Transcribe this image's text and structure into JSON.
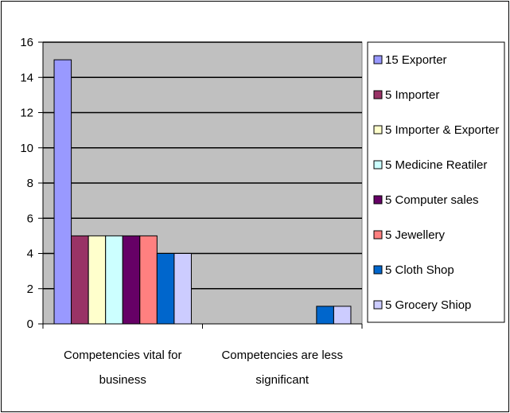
{
  "chart_data": {
    "type": "bar",
    "categories": [
      [
        "Competencies vital for",
        "business"
      ],
      [
        "Competencies are less",
        "significant"
      ]
    ],
    "series": [
      {
        "name": "15 Exporter",
        "color": "#9999ff",
        "values": [
          15,
          0
        ]
      },
      {
        "name": "5 Importer",
        "color": "#993366",
        "values": [
          5,
          0
        ]
      },
      {
        "name": "5 Importer & Exporter",
        "color": "#ffffcc",
        "values": [
          5,
          0
        ]
      },
      {
        "name": "5 Medicine Reatiler",
        "color": "#ccffff",
        "values": [
          5,
          0
        ]
      },
      {
        "name": "5 Computer sales",
        "color": "#660066",
        "values": [
          5,
          0
        ]
      },
      {
        "name": "5 Jewellery",
        "color": "#ff8080",
        "values": [
          5,
          0
        ]
      },
      {
        "name": "5 Cloth Shop",
        "color": "#0066cc",
        "values": [
          4,
          1
        ]
      },
      {
        "name": "5 Grocery Shiop",
        "color": "#ccccff",
        "values": [
          4,
          1
        ]
      }
    ],
    "ylim": [
      0,
      16
    ],
    "yticks": [
      0,
      2,
      4,
      6,
      8,
      10,
      12,
      14,
      16
    ],
    "plot_background": "#c0c0c0",
    "grid": true,
    "legend_position": "right"
  }
}
